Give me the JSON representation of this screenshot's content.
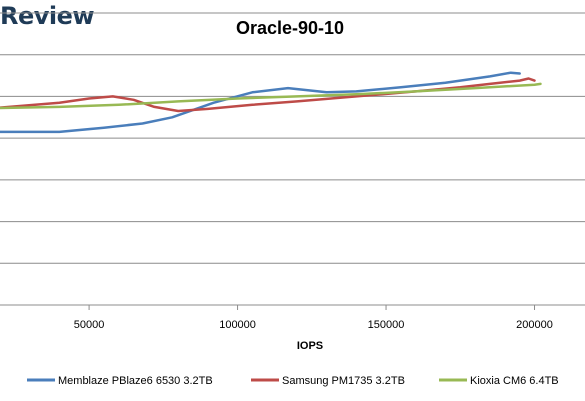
{
  "brand_text": "Review",
  "chart_data": {
    "type": "line",
    "title": "Oracle-90-10",
    "xlabel": "IOPS",
    "ylabel": "",
    "xlim": [
      20000,
      217000
    ],
    "ylim": [
      0,
      7
    ],
    "x_ticks": [
      50000,
      100000,
      150000,
      200000
    ],
    "y_grid_lines": [
      0,
      1,
      2,
      3,
      4,
      5,
      6,
      7
    ],
    "grid": "horizontal",
    "legend_position": "bottom",
    "series": [
      {
        "name": "Memblaze PBlaze6 6530 3.2TB",
        "color": "#4a7ebb",
        "points": [
          [
            18000,
            4.15
          ],
          [
            25000,
            4.15
          ],
          [
            40000,
            4.15
          ],
          [
            55000,
            4.25
          ],
          [
            68000,
            4.35
          ],
          [
            78000,
            4.5
          ],
          [
            92000,
            4.85
          ],
          [
            105000,
            5.1
          ],
          [
            117000,
            5.2
          ],
          [
            130000,
            5.1
          ],
          [
            140000,
            5.12
          ],
          [
            155000,
            5.22
          ],
          [
            170000,
            5.33
          ],
          [
            185000,
            5.48
          ],
          [
            192000,
            5.57
          ],
          [
            195000,
            5.55
          ]
        ]
      },
      {
        "name": "Samsung PM1735 3.2TB",
        "color": "#be4b48",
        "points": [
          [
            18000,
            4.72
          ],
          [
            40000,
            4.85
          ],
          [
            50000,
            4.95
          ],
          [
            58000,
            5.0
          ],
          [
            65000,
            4.92
          ],
          [
            72000,
            4.75
          ],
          [
            80000,
            4.65
          ],
          [
            90000,
            4.7
          ],
          [
            105000,
            4.8
          ],
          [
            120000,
            4.88
          ],
          [
            140000,
            5.0
          ],
          [
            160000,
            5.12
          ],
          [
            175000,
            5.22
          ],
          [
            185000,
            5.3
          ],
          [
            195000,
            5.38
          ],
          [
            198000,
            5.43
          ],
          [
            200000,
            5.38
          ]
        ]
      },
      {
        "name": "Kioxia CM6 6.4TB",
        "color": "#98b954",
        "points": [
          [
            18000,
            4.72
          ],
          [
            40000,
            4.75
          ],
          [
            60000,
            4.8
          ],
          [
            80000,
            4.88
          ],
          [
            100000,
            4.95
          ],
          [
            120000,
            5.0
          ],
          [
            140000,
            5.05
          ],
          [
            160000,
            5.12
          ],
          [
            180000,
            5.2
          ],
          [
            200000,
            5.28
          ],
          [
            202000,
            5.3
          ]
        ]
      }
    ]
  }
}
